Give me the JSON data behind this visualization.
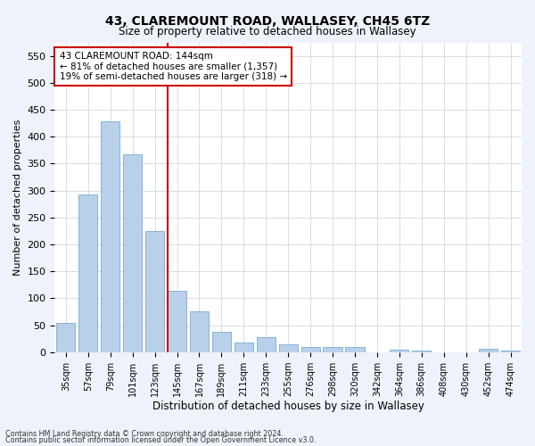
{
  "title": "43, CLAREMOUNT ROAD, WALLASEY, CH45 6TZ",
  "subtitle": "Size of property relative to detached houses in Wallasey",
  "xlabel": "Distribution of detached houses by size in Wallasey",
  "ylabel": "Number of detached properties",
  "categories": [
    "35sqm",
    "57sqm",
    "79sqm",
    "101sqm",
    "123sqm",
    "145sqm",
    "167sqm",
    "189sqm",
    "211sqm",
    "233sqm",
    "255sqm",
    "276sqm",
    "298sqm",
    "320sqm",
    "342sqm",
    "364sqm",
    "386sqm",
    "408sqm",
    "430sqm",
    "452sqm",
    "474sqm"
  ],
  "values": [
    55,
    292,
    428,
    367,
    225,
    113,
    75,
    38,
    17,
    27,
    15,
    10,
    10,
    10,
    0,
    5,
    3,
    0,
    0,
    6,
    3
  ],
  "bar_color": "#b8d0ea",
  "bar_edge_color": "#6a9fc8",
  "vline_index": 5,
  "ylim": [
    0,
    575
  ],
  "yticks": [
    0,
    50,
    100,
    150,
    200,
    250,
    300,
    350,
    400,
    450,
    500,
    550
  ],
  "annotation_lines": [
    "43 CLAREMOUNT ROAD: 144sqm",
    "← 81% of detached houses are smaller (1,357)",
    "19% of semi-detached houses are larger (318) →"
  ],
  "annotation_box_color": "#ffffff",
  "annotation_box_edge_color": "#cc0000",
  "vline_color": "#cc0000",
  "footer1": "Contains HM Land Registry data © Crown copyright and database right 2024.",
  "footer2": "Contains public sector information licensed under the Open Government Licence v3.0.",
  "bg_color": "#eef2fa",
  "plot_bg_color": "#ffffff"
}
